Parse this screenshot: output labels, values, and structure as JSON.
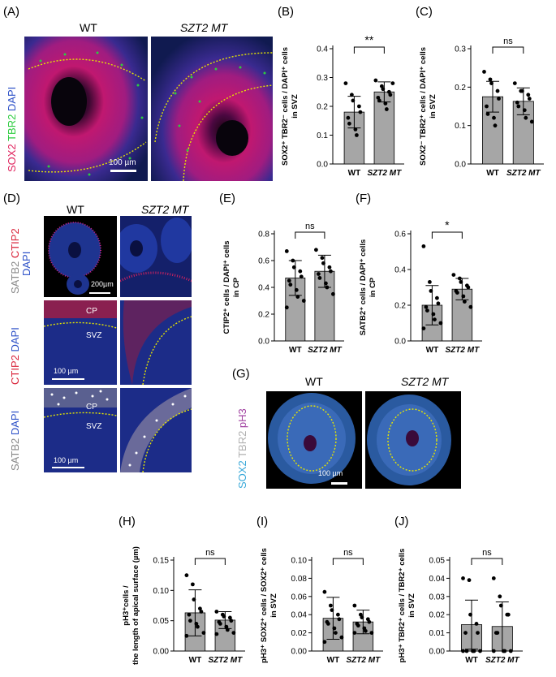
{
  "panel_labels": {
    "A": "(A)",
    "B": "(B)",
    "C": "(C)",
    "D": "(D)",
    "E": "(E)",
    "F": "(F)",
    "G": "(G)",
    "H": "(H)",
    "I": "(I)",
    "J": "(J)"
  },
  "headers": {
    "wt": "WT",
    "mt": "SZT2 MT"
  },
  "panelA": {
    "stain_sox2": "SOX2",
    "stain_tbr2": "TBR2",
    "stain_dapi": "DAPI",
    "scale": "100 µm"
  },
  "panelD": {
    "row1_stain1": "SATB2",
    "row1_stain2": "CTIP2",
    "row1_stain3": "DAPI",
    "row1_scale": "200µm",
    "row2_stain1": "CTIP2",
    "row2_stain2": "DAPI",
    "row2_cp": "CP",
    "row2_svz": "SVZ",
    "row2_scale": "100 µm",
    "row3_stain1": "SATB2",
    "row3_stain2": "DAPI",
    "row3_cp": "CP",
    "row3_svz": "SVZ",
    "row3_scale": "100 µm"
  },
  "panelG": {
    "stain1": "SOX2",
    "stain2": "TBR2",
    "stain3": "pH3",
    "scale": "100 µm"
  },
  "colors": {
    "bar": "#a6a6a6",
    "sox2": "#e0245e",
    "tbr2": "#2ecc40",
    "dapi": "#2b4fc7",
    "ctip2": "#d9243a",
    "satb2": "#b0b0b0",
    "sox2_g": "#3aa9d9",
    "ph3": "#a040a0",
    "dotted": "#e6e600"
  },
  "chart_data": [
    {
      "id": "B",
      "type": "bar",
      "categories": [
        "WT",
        "SZT2 MT"
      ],
      "values": [
        0.18,
        0.25
      ],
      "errors": [
        0.055,
        0.035
      ],
      "points": [
        [
          0.28,
          0.24,
          0.22,
          0.2,
          0.18,
          0.16,
          0.14,
          0.12,
          0.1
        ],
        [
          0.29,
          0.27,
          0.26,
          0.25,
          0.24,
          0.23,
          0.22,
          0.21,
          0.19,
          0.28
        ]
      ],
      "ylabel": "SOX2⁺ TBR2⁻ cells / DAPI⁺ cells in SVZ",
      "yticks": [
        "0.0",
        "0.1",
        "0.2",
        "0.3",
        "0.4"
      ],
      "ylim": [
        0,
        0.4
      ],
      "sig": "**"
    },
    {
      "id": "C",
      "type": "bar",
      "categories": [
        "WT",
        "SZT2 MT"
      ],
      "values": [
        0.175,
        0.163
      ],
      "errors": [
        0.04,
        0.035
      ],
      "points": [
        [
          0.24,
          0.22,
          0.21,
          0.19,
          0.17,
          0.15,
          0.13,
          0.12,
          0.1
        ],
        [
          0.21,
          0.19,
          0.19,
          0.18,
          0.17,
          0.16,
          0.15,
          0.14,
          0.12,
          0.11
        ]
      ],
      "ylabel": "SOX2⁻ TBR2⁺ cells / DAPI⁺ cells in SVZ",
      "yticks": [
        "0.0",
        "0.1",
        "0.2",
        "0.3"
      ],
      "ylim": [
        0,
        0.3
      ],
      "sig": "ns"
    },
    {
      "id": "E",
      "type": "bar",
      "categories": [
        "WT",
        "SZT2 MT"
      ],
      "values": [
        0.47,
        0.52
      ],
      "errors": [
        0.13,
        0.12
      ],
      "points": [
        [
          0.67,
          0.6,
          0.55,
          0.52,
          0.48,
          0.45,
          0.42,
          0.38,
          0.33,
          0.3,
          0.25
        ],
        [
          0.68,
          0.62,
          0.58,
          0.55,
          0.52,
          0.5,
          0.47,
          0.43,
          0.4,
          0.35
        ]
      ],
      "ylabel": "CTIP2⁺ cells / DAPI⁺ cells in CP",
      "yticks": [
        "0.0",
        "0.2",
        "0.4",
        "0.6",
        "0.8"
      ],
      "ylim": [
        0,
        0.8
      ],
      "sig": "ns"
    },
    {
      "id": "F",
      "type": "bar",
      "categories": [
        "WT",
        "SZT2 MT"
      ],
      "values": [
        0.2,
        0.29
      ],
      "errors": [
        0.11,
        0.06
      ],
      "points": [
        [
          0.53,
          0.33,
          0.28,
          0.24,
          0.21,
          0.19,
          0.17,
          0.15,
          0.12,
          0.1,
          0.07
        ],
        [
          0.37,
          0.35,
          0.33,
          0.31,
          0.3,
          0.28,
          0.27,
          0.25,
          0.22,
          0.19
        ]
      ],
      "ylabel": "SATB2⁺ cells / DAPI⁺ cells in CP",
      "yticks": [
        "0.0",
        "0.2",
        "0.4",
        "0.6"
      ],
      "ylim": [
        0,
        0.6
      ],
      "sig": "*"
    },
    {
      "id": "H",
      "type": "bar",
      "categories": [
        "WT",
        "SZT2 MT"
      ],
      "values": [
        0.063,
        0.051
      ],
      "errors": [
        0.038,
        0.014
      ],
      "points": [
        [
          0.125,
          0.11,
          0.085,
          0.07,
          0.065,
          0.06,
          0.05,
          0.045,
          0.04,
          0.03,
          0.025
        ],
        [
          0.065,
          0.06,
          0.057,
          0.055,
          0.05,
          0.048,
          0.045,
          0.04,
          0.035,
          0.03,
          0.028
        ]
      ],
      "ylabel": "pH3⁺cells / the length of apical surface (µm)",
      "yticks": [
        "0.00",
        "0.05",
        "0.10",
        "0.15"
      ],
      "ylim": [
        0,
        0.15
      ],
      "sig": "ns"
    },
    {
      "id": "I",
      "type": "bar",
      "categories": [
        "WT",
        "SZT2 MT"
      ],
      "values": [
        0.036,
        0.032
      ],
      "errors": [
        0.023,
        0.013
      ],
      "points": [
        [
          0.065,
          0.05,
          0.045,
          0.04,
          0.035,
          0.032,
          0.03,
          0.025,
          0.02,
          0.015,
          0.01
        ],
        [
          0.05,
          0.04,
          0.037,
          0.035,
          0.032,
          0.03,
          0.028,
          0.025,
          0.022,
          0.02,
          0.02
        ]
      ],
      "ylabel": "pH3⁺ SOX2⁺ cells / SOX2⁺ cells in SVZ",
      "yticks": [
        "0.00",
        "0.02",
        "0.04",
        "0.06",
        "0.08",
        "0.10"
      ],
      "ylim": [
        0,
        0.1
      ],
      "sig": "ns"
    },
    {
      "id": "J",
      "type": "bar",
      "categories": [
        "WT",
        "SZT2 MT"
      ],
      "values": [
        0.0145,
        0.0135
      ],
      "errors": [
        0.0135,
        0.0135
      ],
      "points": [
        [
          0.04,
          0.039,
          0.02,
          0.015,
          0.01,
          0.01,
          0.0,
          0.0,
          0.0,
          0.0,
          0.0
        ],
        [
          0.04,
          0.03,
          0.025,
          0.02,
          0.02,
          0.01,
          0.01,
          0.0,
          0.0,
          0.0,
          0.0
        ]
      ],
      "ylabel": "pH3⁺ TBR2⁺ cells / TBR2⁺ cells in SVZ",
      "yticks": [
        "0.00",
        "0.01",
        "0.02",
        "0.03",
        "0.04",
        "0.05"
      ],
      "ylim": [
        0,
        0.05
      ],
      "sig": "ns"
    }
  ]
}
